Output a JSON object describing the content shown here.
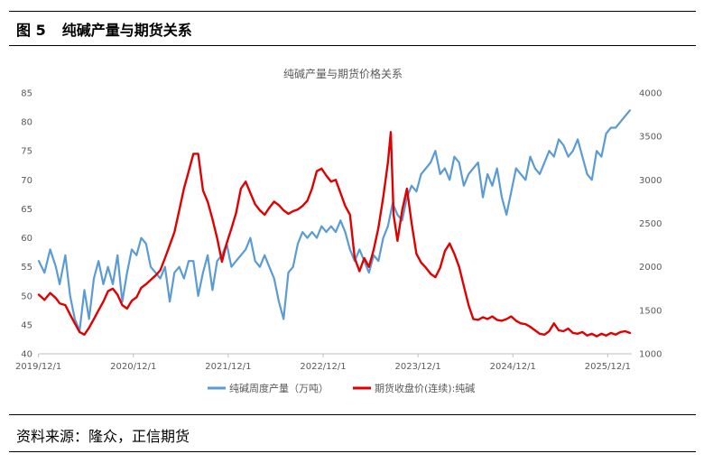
{
  "figure": {
    "number": "图 5",
    "title": "纯碱产量与期货关系",
    "source": "资料来源：隆众，正信期货"
  },
  "colors": {
    "production": "#5b9bd5",
    "futures": "#e00000",
    "axis": "#bfbfbf",
    "text": "#595959"
  },
  "chart_data": {
    "type": "line",
    "title": "纯碱产量与期货价格关系",
    "x_labels": [
      "2019/12/1",
      "2020/12/1",
      "2021/12/1",
      "2022/12/1",
      "2023/12/1",
      "2024/12/1",
      "2025/12/1"
    ],
    "x_range": [
      2019.92,
      2026.17
    ],
    "left_axis": {
      "ylim": [
        40,
        85
      ],
      "ticks": [
        "40",
        "45",
        "50",
        "55",
        "60",
        "65",
        "70",
        "75",
        "80",
        "85"
      ]
    },
    "right_axis": {
      "ylim": [
        1000,
        4000
      ],
      "ticks": [
        "1000",
        "1500",
        "2000",
        "2500",
        "3000",
        "3500",
        "4000"
      ]
    },
    "series": [
      {
        "name": "纯碱周度产量（万吨）",
        "axis": "left",
        "points": [
          [
            2019.92,
            56
          ],
          [
            2019.98,
            54
          ],
          [
            2020.04,
            58
          ],
          [
            2020.1,
            55
          ],
          [
            2020.14,
            52
          ],
          [
            2020.2,
            57
          ],
          [
            2020.25,
            50
          ],
          [
            2020.3,
            46
          ],
          [
            2020.35,
            44
          ],
          [
            2020.4,
            51
          ],
          [
            2020.45,
            46
          ],
          [
            2020.5,
            53
          ],
          [
            2020.55,
            56
          ],
          [
            2020.6,
            52
          ],
          [
            2020.65,
            55
          ],
          [
            2020.7,
            52
          ],
          [
            2020.75,
            57
          ],
          [
            2020.8,
            49
          ],
          [
            2020.85,
            54
          ],
          [
            2020.9,
            58
          ],
          [
            2020.95,
            57
          ],
          [
            2021.0,
            60
          ],
          [
            2021.05,
            59
          ],
          [
            2021.1,
            55
          ],
          [
            2021.15,
            54
          ],
          [
            2021.2,
            53
          ],
          [
            2021.25,
            55
          ],
          [
            2021.3,
            49
          ],
          [
            2021.35,
            54
          ],
          [
            2021.4,
            55
          ],
          [
            2021.45,
            53
          ],
          [
            2021.5,
            56
          ],
          [
            2021.55,
            56
          ],
          [
            2021.6,
            50
          ],
          [
            2021.65,
            54
          ],
          [
            2021.7,
            57
          ],
          [
            2021.75,
            51
          ],
          [
            2021.8,
            56
          ],
          [
            2021.85,
            57
          ],
          [
            2021.9,
            59
          ],
          [
            2021.95,
            55
          ],
          [
            2022.0,
            56
          ],
          [
            2022.05,
            57
          ],
          [
            2022.1,
            58
          ],
          [
            2022.15,
            60
          ],
          [
            2022.2,
            56
          ],
          [
            2022.25,
            55
          ],
          [
            2022.3,
            57
          ],
          [
            2022.35,
            55
          ],
          [
            2022.4,
            53
          ],
          [
            2022.45,
            49
          ],
          [
            2022.5,
            46
          ],
          [
            2022.55,
            54
          ],
          [
            2022.6,
            55
          ],
          [
            2022.65,
            59
          ],
          [
            2022.7,
            61
          ],
          [
            2022.75,
            60
          ],
          [
            2022.8,
            61
          ],
          [
            2022.85,
            60
          ],
          [
            2022.9,
            62
          ],
          [
            2022.95,
            61
          ],
          [
            2023.0,
            62
          ],
          [
            2023.05,
            61
          ],
          [
            2023.1,
            63
          ],
          [
            2023.15,
            61
          ],
          [
            2023.2,
            58
          ],
          [
            2023.25,
            56
          ],
          [
            2023.3,
            58
          ],
          [
            2023.35,
            56
          ],
          [
            2023.4,
            54
          ],
          [
            2023.45,
            57
          ],
          [
            2023.5,
            56
          ],
          [
            2023.55,
            60
          ],
          [
            2023.6,
            62
          ],
          [
            2023.65,
            66
          ],
          [
            2023.7,
            64
          ],
          [
            2023.75,
            63
          ],
          [
            2023.8,
            67
          ],
          [
            2023.85,
            69
          ],
          [
            2023.9,
            68
          ],
          [
            2023.95,
            71
          ],
          [
            2024.0,
            72
          ],
          [
            2024.05,
            73
          ],
          [
            2024.1,
            75
          ],
          [
            2024.15,
            71
          ],
          [
            2024.2,
            72
          ],
          [
            2024.25,
            70
          ],
          [
            2024.3,
            74
          ],
          [
            2024.35,
            73
          ],
          [
            2024.4,
            69
          ],
          [
            2024.45,
            71
          ],
          [
            2024.5,
            72
          ],
          [
            2024.55,
            73
          ],
          [
            2024.6,
            67
          ],
          [
            2024.65,
            71
          ],
          [
            2024.7,
            69
          ],
          [
            2024.75,
            72
          ],
          [
            2024.8,
            67
          ],
          [
            2024.85,
            64
          ],
          [
            2024.9,
            68
          ],
          [
            2024.95,
            72
          ],
          [
            2025.0,
            71
          ],
          [
            2025.05,
            70
          ],
          [
            2025.1,
            74
          ],
          [
            2025.15,
            72
          ],
          [
            2025.2,
            71
          ],
          [
            2025.25,
            73
          ],
          [
            2025.3,
            75
          ],
          [
            2025.35,
            74
          ],
          [
            2025.4,
            77
          ],
          [
            2025.45,
            76
          ],
          [
            2025.5,
            74
          ],
          [
            2025.55,
            75
          ],
          [
            2025.6,
            77
          ],
          [
            2025.65,
            74
          ],
          [
            2025.7,
            71
          ],
          [
            2025.75,
            70
          ],
          [
            2025.8,
            75
          ],
          [
            2025.85,
            74
          ],
          [
            2025.9,
            78
          ],
          [
            2025.95,
            79
          ],
          [
            2026.0,
            79
          ],
          [
            2026.05,
            80
          ],
          [
            2026.1,
            81
          ],
          [
            2026.15,
            82
          ]
        ]
      },
      {
        "name": "期货收盘价(连续):纯碱",
        "axis": "right",
        "points": [
          [
            2019.92,
            1680
          ],
          [
            2019.98,
            1620
          ],
          [
            2020.04,
            1700
          ],
          [
            2020.1,
            1640
          ],
          [
            2020.14,
            1580
          ],
          [
            2020.2,
            1560
          ],
          [
            2020.25,
            1450
          ],
          [
            2020.3,
            1350
          ],
          [
            2020.35,
            1250
          ],
          [
            2020.4,
            1220
          ],
          [
            2020.45,
            1300
          ],
          [
            2020.5,
            1400
          ],
          [
            2020.55,
            1500
          ],
          [
            2020.6,
            1600
          ],
          [
            2020.65,
            1720
          ],
          [
            2020.7,
            1750
          ],
          [
            2020.75,
            1680
          ],
          [
            2020.8,
            1560
          ],
          [
            2020.85,
            1520
          ],
          [
            2020.9,
            1610
          ],
          [
            2020.95,
            1650
          ],
          [
            2021.0,
            1760
          ],
          [
            2021.05,
            1800
          ],
          [
            2021.1,
            1850
          ],
          [
            2021.15,
            1900
          ],
          [
            2021.2,
            1960
          ],
          [
            2021.25,
            2100
          ],
          [
            2021.3,
            2250
          ],
          [
            2021.35,
            2400
          ],
          [
            2021.4,
            2650
          ],
          [
            2021.45,
            2900
          ],
          [
            2021.5,
            3100
          ],
          [
            2021.55,
            3300
          ],
          [
            2021.6,
            3300
          ],
          [
            2021.65,
            2880
          ],
          [
            2021.7,
            2750
          ],
          [
            2021.75,
            2550
          ],
          [
            2021.8,
            2330
          ],
          [
            2021.85,
            2060
          ],
          [
            2021.9,
            2270
          ],
          [
            2021.95,
            2440
          ],
          [
            2022.0,
            2620
          ],
          [
            2022.05,
            2900
          ],
          [
            2022.1,
            2980
          ],
          [
            2022.15,
            2850
          ],
          [
            2022.2,
            2720
          ],
          [
            2022.25,
            2650
          ],
          [
            2022.3,
            2600
          ],
          [
            2022.35,
            2680
          ],
          [
            2022.4,
            2750
          ],
          [
            2022.45,
            2710
          ],
          [
            2022.5,
            2650
          ],
          [
            2022.55,
            2610
          ],
          [
            2022.6,
            2640
          ],
          [
            2022.65,
            2660
          ],
          [
            2022.7,
            2700
          ],
          [
            2022.75,
            2760
          ],
          [
            2022.8,
            2900
          ],
          [
            2022.85,
            3100
          ],
          [
            2022.9,
            3130
          ],
          [
            2022.95,
            3050
          ],
          [
            2023.0,
            2980
          ],
          [
            2023.05,
            3000
          ],
          [
            2023.1,
            2850
          ],
          [
            2023.15,
            2700
          ],
          [
            2023.2,
            2600
          ],
          [
            2023.25,
            2100
          ],
          [
            2023.3,
            1950
          ],
          [
            2023.35,
            2100
          ],
          [
            2023.4,
            2000
          ],
          [
            2023.45,
            2200
          ],
          [
            2023.5,
            2450
          ],
          [
            2023.55,
            2800
          ],
          [
            2023.6,
            3200
          ],
          [
            2023.63,
            3550
          ],
          [
            2023.66,
            2600
          ],
          [
            2023.7,
            2300
          ],
          [
            2023.75,
            2650
          ],
          [
            2023.8,
            2900
          ],
          [
            2023.85,
            2500
          ],
          [
            2023.9,
            2150
          ],
          [
            2023.95,
            2050
          ],
          [
            2024.0,
            1990
          ],
          [
            2024.05,
            1920
          ],
          [
            2024.1,
            1880
          ],
          [
            2024.15,
            1990
          ],
          [
            2024.2,
            2180
          ],
          [
            2024.25,
            2270
          ],
          [
            2024.3,
            2150
          ],
          [
            2024.35,
            2000
          ],
          [
            2024.4,
            1780
          ],
          [
            2024.45,
            1560
          ],
          [
            2024.5,
            1400
          ],
          [
            2024.55,
            1390
          ],
          [
            2024.6,
            1420
          ],
          [
            2024.65,
            1400
          ],
          [
            2024.7,
            1430
          ],
          [
            2024.75,
            1390
          ],
          [
            2024.8,
            1380
          ],
          [
            2024.85,
            1400
          ],
          [
            2024.9,
            1430
          ],
          [
            2024.95,
            1380
          ],
          [
            2025.0,
            1350
          ],
          [
            2025.05,
            1340
          ],
          [
            2025.1,
            1310
          ],
          [
            2025.15,
            1270
          ],
          [
            2025.2,
            1230
          ],
          [
            2025.25,
            1220
          ],
          [
            2025.3,
            1260
          ],
          [
            2025.35,
            1350
          ],
          [
            2025.4,
            1270
          ],
          [
            2025.45,
            1260
          ],
          [
            2025.5,
            1290
          ],
          [
            2025.55,
            1240
          ],
          [
            2025.6,
            1230
          ],
          [
            2025.65,
            1250
          ],
          [
            2025.7,
            1210
          ],
          [
            2025.75,
            1230
          ],
          [
            2025.8,
            1200
          ],
          [
            2025.85,
            1230
          ],
          [
            2025.9,
            1210
          ],
          [
            2025.95,
            1240
          ],
          [
            2026.0,
            1220
          ],
          [
            2026.05,
            1250
          ],
          [
            2026.1,
            1260
          ],
          [
            2026.15,
            1240
          ]
        ]
      }
    ]
  }
}
